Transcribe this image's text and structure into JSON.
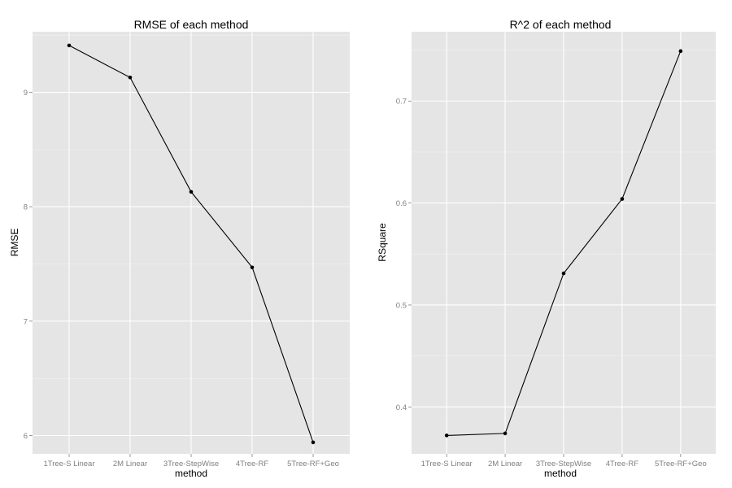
{
  "chart_data": [
    {
      "type": "line",
      "title": "RMSE of each method",
      "xlabel": "method",
      "ylabel": "RMSE",
      "categories": [
        "1Tree-S Linear",
        "2M Linear",
        "3Tree-StepWise",
        "4Tree-RF",
        "5Tree-RF+Geo"
      ],
      "values": [
        9.41,
        9.13,
        8.13,
        7.47,
        5.94
      ],
      "ylim": [
        5.84,
        9.53
      ],
      "yticks": [
        6,
        7,
        8,
        9
      ],
      "ytick_labels": [
        "6",
        "7",
        "8",
        "9"
      ],
      "grid": true,
      "line_color": "#000000",
      "panel_color": "#e5e5e5"
    },
    {
      "type": "line",
      "title": "R^2 of each method",
      "xlabel": "method",
      "ylabel": "RSquare",
      "categories": [
        "1Tree-S Linear",
        "2M Linear",
        "3Tree-StepWise",
        "4Tree-RF",
        "5Tree-RF+Geo"
      ],
      "values": [
        0.372,
        0.374,
        0.531,
        0.604,
        0.749
      ],
      "ylim": [
        0.354,
        0.768
      ],
      "yticks": [
        0.4,
        0.5,
        0.6,
        0.7
      ],
      "ytick_labels": [
        "0.4",
        "0.5",
        "0.6",
        "0.7"
      ],
      "grid": true,
      "line_color": "#000000",
      "panel_color": "#e5e5e5"
    }
  ]
}
